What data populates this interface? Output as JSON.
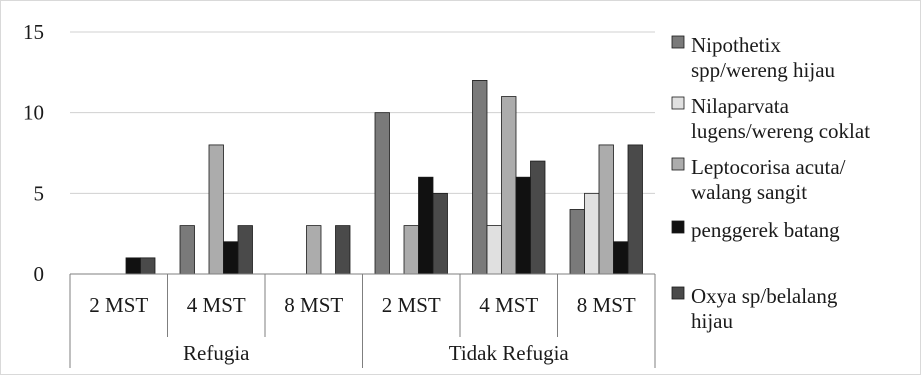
{
  "chart_data": {
    "type": "bar",
    "title": "",
    "xlabel": "",
    "ylabel": "",
    "ylim": [
      0,
      15
    ],
    "yticks": [
      0,
      5,
      10,
      15
    ],
    "grid": "horizontal",
    "legend_position": "right",
    "groups": [
      {
        "label": "Refugia",
        "categories": [
          "2 MST",
          "4 MST",
          "8 MST"
        ]
      },
      {
        "label": "Tidak Refugia",
        "categories": [
          "2 MST",
          "4 MST",
          "8 MST"
        ]
      }
    ],
    "categories": [
      "2 MST",
      "4 MST",
      "8 MST",
      "2 MST",
      "4 MST",
      "8 MST"
    ],
    "series": [
      {
        "name": "Nipothetix spp/wereng hijau",
        "legend_lines": [
          "Nipothetix",
          "spp/wereng hijau"
        ],
        "color": "#7a7a7a",
        "values": [
          0,
          3,
          0,
          10,
          12,
          4
        ]
      },
      {
        "name": "Nilaparvata lugens/wereng coklat",
        "legend_lines": [
          "Nilaparvata",
          "lugens/wereng coklat"
        ],
        "color": "#e0e0e0",
        "values": [
          0,
          0,
          0,
          0,
          3,
          5
        ]
      },
      {
        "name": "Leptocorisa acuta/ walang sangit",
        "legend_lines": [
          "Leptocorisa acuta/",
          "walang sangit"
        ],
        "color": "#acacac",
        "values": [
          0,
          8,
          3,
          3,
          11,
          8
        ]
      },
      {
        "name": "penggerek batang",
        "legend_lines": [
          "penggerek batang"
        ],
        "color": "#111111",
        "values": [
          1,
          2,
          0,
          6,
          6,
          2
        ]
      },
      {
        "name": "Oxya sp/belalang hijau",
        "legend_lines": [
          "Oxya sp/belalang",
          "hijau"
        ],
        "color": "#4a4a4a",
        "values": [
          1,
          3,
          3,
          5,
          7,
          8
        ]
      }
    ]
  }
}
